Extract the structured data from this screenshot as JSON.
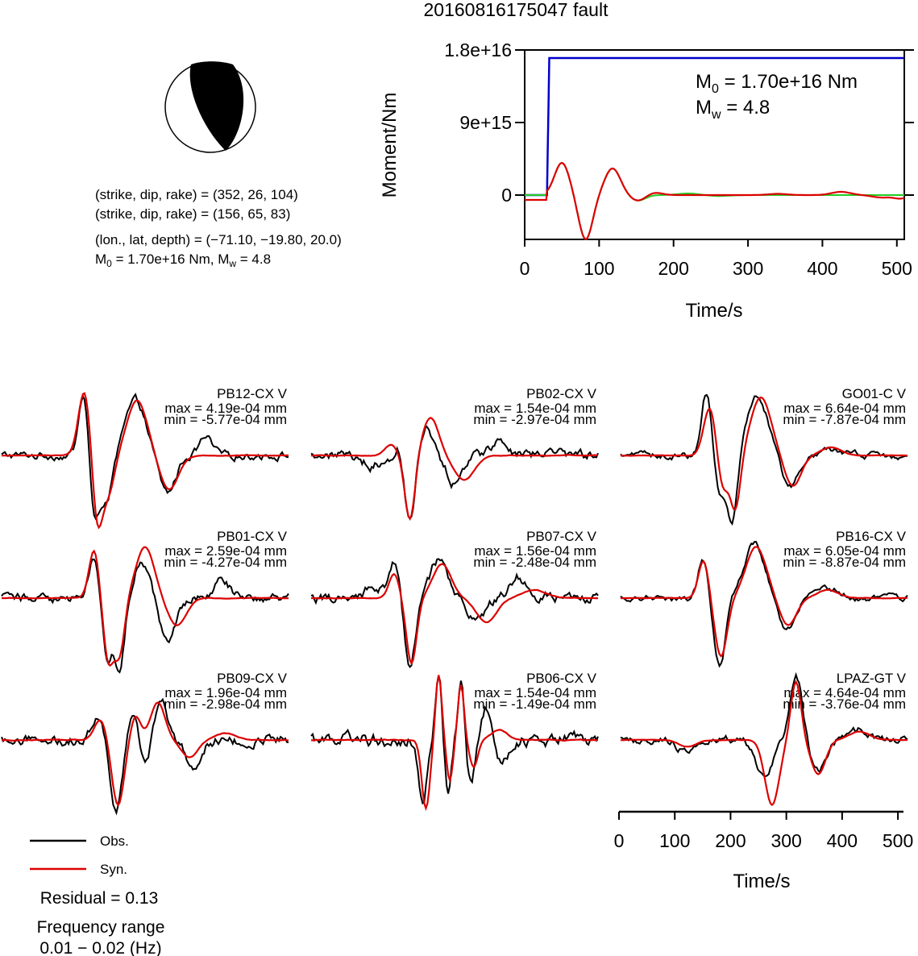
{
  "chart_data": [
    {
      "type": "line",
      "title": "20160816175047 fault",
      "xlabel": "Time/s",
      "ylabel": "Moment/Nm",
      "xlim": [
        0,
        510
      ],
      "ylim": [
        -5500000000000000.0,
        1.8e+16
      ],
      "xticks": [
        0,
        100,
        200,
        300,
        400,
        500
      ],
      "xtick_labels": [
        "0",
        "100",
        "200",
        "300",
        "400",
        "500"
      ],
      "yticks": [
        0,
        9000000000000000.0,
        1.8e+16
      ],
      "ytick_labels": [
        "0",
        "9e+15",
        "1.8e+16"
      ],
      "annotation_m0": "M0 = 1.70e+16 Nm",
      "annotation_mw": "Mw = 4.8",
      "series": [
        {
          "color": "#0000cc",
          "kind": "moment",
          "onset": 30,
          "rise": 33,
          "value": 1.7e+16
        },
        {
          "color": "#22cc22",
          "kind": "stf_synthetic"
        },
        {
          "color": "#dd0000",
          "kind": "stf_observed"
        }
      ]
    },
    {
      "type": "line",
      "xlabel": "Time/s",
      "xlim": [
        0,
        510
      ],
      "xticks": [
        0,
        100,
        200,
        300,
        400,
        500
      ],
      "xtick_labels": [
        "0",
        "100",
        "200",
        "300",
        "400",
        "500"
      ],
      "series_colors": {
        "obs": "#000000",
        "syn": "#dd0000"
      },
      "stations": [
        {
          "name": "PB12-CX V",
          "max": "max = 4.19e-04 mm",
          "min": "min = -5.77e-04 mm"
        },
        {
          "name": "PB02-CX V",
          "max": "max = 1.54e-04 mm",
          "min": "min = -2.97e-04 mm"
        },
        {
          "name": "GO01-C V",
          "max": "max = 6.64e-04 mm",
          "min": "min = -7.87e-04 mm"
        },
        {
          "name": "PB01-CX V",
          "max": "max = 2.59e-04 mm",
          "min": "min = -4.27e-04 mm"
        },
        {
          "name": "PB07-CX V",
          "max": "max = 1.56e-04 mm",
          "min": "min = -2.48e-04 mm"
        },
        {
          "name": "PB16-CX V",
          "max": "max = 6.05e-04 mm",
          "min": "min = -8.87e-04 mm"
        },
        {
          "name": "PB09-CX V",
          "max": "max = 1.96e-04 mm",
          "min": "min = -2.98e-04 mm"
        },
        {
          "name": "PB06-CX V",
          "max": "max = 1.54e-04 mm",
          "min": "min = -1.49e-04 mm"
        },
        {
          "name": "LPAZ-GT V",
          "max": "max = 4.64e-04 mm",
          "min": "min = -3.76e-04 mm"
        }
      ]
    }
  ],
  "mechanism": {
    "line1": "(strike, dip, rake) = (352, 26, 104)",
    "line2": "(strike, dip, rake) = (156, 65, 83)",
    "location": "(lon., lat, depth) = (−71.10, −19.80, 20.0)",
    "m0_text": "M",
    "m0_sub": "0",
    "m0_rest": " = 1.70e+16 Nm, M",
    "mw_sub": "w",
    "mw_rest": " = 4.8"
  },
  "legend": {
    "obs": "Obs.",
    "syn": "Syn.",
    "residual": "Residual = 0.13",
    "freq_title": "Frequency range",
    "freq_value": "0.01 − 0.02 (Hz)"
  },
  "annotation": {
    "m0_main": "M",
    "m0_sub": "0",
    "m0_value": " = 1.70e+16 Nm",
    "mw_main": "M",
    "mw_sub": "w",
    "mw_value": " = 4.8"
  },
  "colors": {
    "obs": "#000000",
    "syn": "#dd0000",
    "moment": "#0000cc",
    "stf_green": "#22cc22"
  }
}
